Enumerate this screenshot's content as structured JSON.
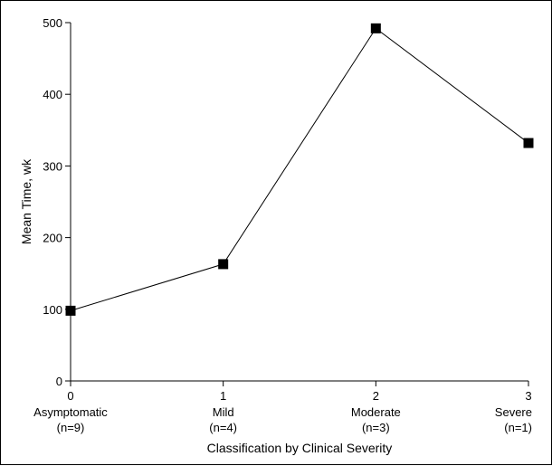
{
  "chart_data": {
    "type": "line",
    "title": "",
    "xlabel": "Classification by Clinical Severity",
    "ylabel": "Mean Time, wk",
    "xlim": [
      0,
      3
    ],
    "ylim": [
      0,
      500
    ],
    "grid": false,
    "legend": "none",
    "y_ticks": [
      0,
      100,
      200,
      300,
      400,
      500
    ],
    "categories": [
      {
        "x": 0,
        "tick": "0",
        "name": "Asymptomatic",
        "n": "(n=9)"
      },
      {
        "x": 1,
        "tick": "1",
        "name": "Mild",
        "n": "(n=4)"
      },
      {
        "x": 2,
        "tick": "2",
        "name": "Moderate",
        "n": "(n=3)"
      },
      {
        "x": 3,
        "tick": "3",
        "name": "Severe",
        "n": "(n=1)"
      }
    ],
    "series": [
      {
        "values": [
          98,
          163,
          492,
          332
        ],
        "marker": "square",
        "color": "#000000"
      }
    ]
  }
}
